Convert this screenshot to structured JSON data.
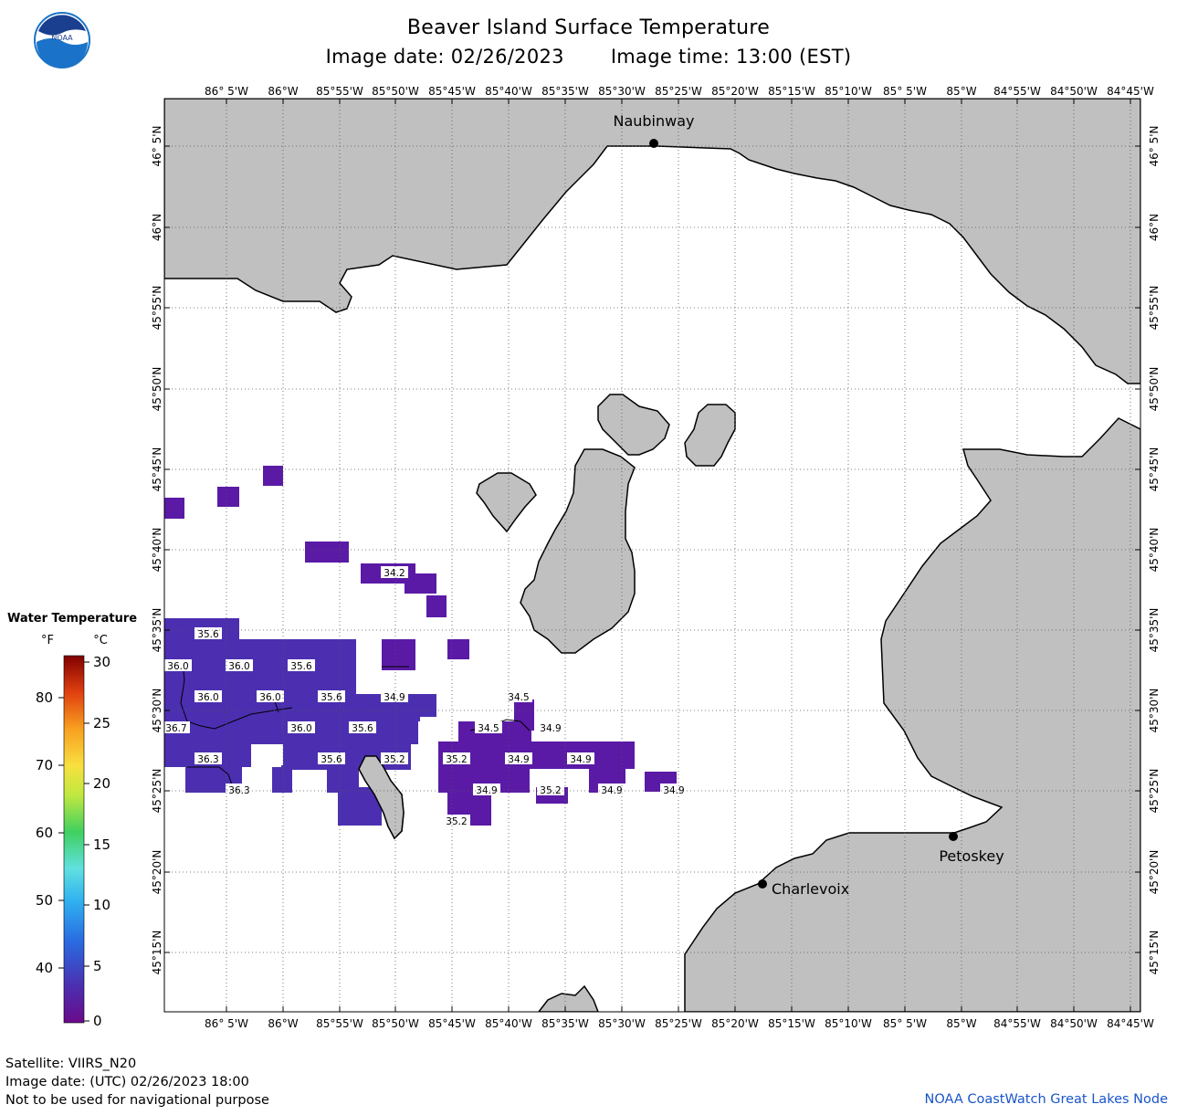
{
  "header": {
    "title": "Beaver Island Surface Temperature",
    "image_date": "Image date: 02/26/2023",
    "image_time": "Image time: 13:00 (EST)",
    "logo_text": "NOAA"
  },
  "axes": {
    "lon_labels": [
      "86° 5'W",
      "86°W",
      "85°55'W",
      "85°50'W",
      "85°45'W",
      "85°40'W",
      "85°35'W",
      "85°30'W",
      "85°25'W",
      "85°20'W",
      "85°15'W",
      "85°10'W",
      "85° 5'W",
      "85°W",
      "84°55'W",
      "84°50'W",
      "84°45'W"
    ],
    "lat_labels": [
      "46° 5'N",
      "46°N",
      "45°55'N",
      "45°50'N",
      "45°45'N",
      "45°40'N",
      "45°35'N",
      "45°30'N",
      "45°25'N",
      "45°20'N",
      "45°15'N"
    ]
  },
  "places": [
    {
      "name": "Naubinway"
    },
    {
      "name": "Charlevoix"
    },
    {
      "name": "Petoskey"
    }
  ],
  "legend": {
    "title": "Water Temperature",
    "unit_f": "°F",
    "unit_c": "°C",
    "f_ticks": [
      "80",
      "70",
      "60",
      "50",
      "40"
    ],
    "c_ticks": [
      "30",
      "25",
      "20",
      "15",
      "10",
      "5",
      "0"
    ]
  },
  "temperature_labels": [
    "35.6",
    "36.0",
    "36.0",
    "35.6",
    "36.0",
    "36.0",
    "35.6",
    "34.9",
    "36.7",
    "36.0",
    "35.6",
    "36.3",
    "35.6",
    "35.2",
    "36.3",
    "34.2",
    "34.5",
    "34.5",
    "34.9",
    "35.2",
    "34.9",
    "34.9",
    "34.9",
    "35.2",
    "34.9",
    "34.9",
    "35.2"
  ],
  "footer": {
    "satellite": "Satellite: VIIRS_N20",
    "utc_date": "Image date: (UTC) 02/26/2023  18:00",
    "disclaimer": "Not to be used for navigational purpose",
    "credit": "NOAA CoastWatch Great Lakes Node"
  },
  "colors": {
    "land": "#c0c0c0",
    "water": "#ffffff",
    "temp_cold": "#4b2fb0",
    "temp_colder": "#5a1aa6",
    "credit": "#1a55c8"
  }
}
